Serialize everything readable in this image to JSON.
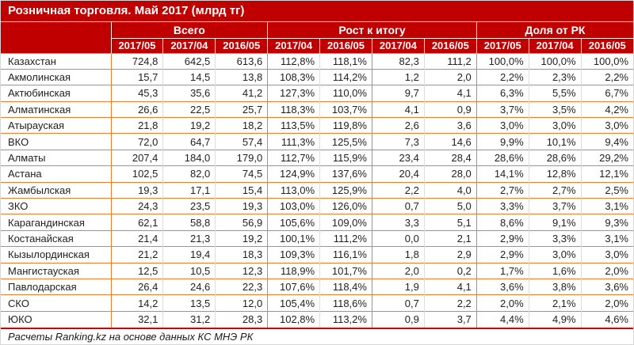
{
  "title": "Розничная торговля. Май 2017 (млрд тг)",
  "footer_note": "Расчеты Ranking.kz на основе данных КС МНЭ РК",
  "colors": {
    "header_bg": "#C00000",
    "row_border": "#ED7D31",
    "footer_border": "#CC0000",
    "column_divider": "#DDDDDD",
    "header_divider": "#F7ECE1",
    "text": "#1F1F1F"
  },
  "chart_data": {
    "type": "table",
    "title": "Розничная торговля. Май 2017 (млрд тг)",
    "column_groups": [
      {
        "label": "Всего",
        "span": 3
      },
      {
        "label": "Рост к итогу",
        "span": 4
      },
      {
        "label": "Доля от РК",
        "span": 3
      }
    ],
    "columns": [
      "2017/05",
      "2017/04",
      "2016/05",
      "2017/04",
      "2016/05",
      "2017/04",
      "2016/05",
      "2017/05",
      "2017/04",
      "2016/05"
    ],
    "rows": [
      {
        "name": "Казахстан",
        "values": [
          "724,8",
          "642,5",
          "613,6",
          "112,8%",
          "118,1%",
          "82,3",
          "111,2",
          "100,0%",
          "100,0%",
          "100,0%"
        ]
      },
      {
        "name": "Акмолинская",
        "values": [
          "15,7",
          "14,5",
          "13,8",
          "108,3%",
          "114,2%",
          "1,2",
          "2,0",
          "2,2%",
          "2,3%",
          "2,2%"
        ]
      },
      {
        "name": "Актюбинская",
        "values": [
          "45,3",
          "35,6",
          "41,2",
          "127,3%",
          "110,0%",
          "9,7",
          "4,1",
          "6,3%",
          "5,5%",
          "6,7%"
        ]
      },
      {
        "name": "Алматинская",
        "values": [
          "26,6",
          "22,5",
          "25,7",
          "118,3%",
          "103,7%",
          "4,1",
          "0,9",
          "3,7%",
          "3,5%",
          "4,2%"
        ]
      },
      {
        "name": "Атырауская",
        "values": [
          "21,8",
          "19,2",
          "18,2",
          "113,5%",
          "119,8%",
          "2,6",
          "3,6",
          "3,0%",
          "3,0%",
          "3,0%"
        ]
      },
      {
        "name": "ВКО",
        "values": [
          "72,0",
          "64,7",
          "57,4",
          "111,3%",
          "125,5%",
          "7,3",
          "14,6",
          "9,9%",
          "10,1%",
          "9,4%"
        ]
      },
      {
        "name": "Алматы",
        "values": [
          "207,4",
          "184,0",
          "179,0",
          "112,7%",
          "115,9%",
          "23,4",
          "28,4",
          "28,6%",
          "28,6%",
          "29,2%"
        ]
      },
      {
        "name": "Астана",
        "values": [
          "102,5",
          "82,0",
          "74,5",
          "124,9%",
          "137,6%",
          "20,4",
          "28,0",
          "14,1%",
          "12,8%",
          "12,1%"
        ]
      },
      {
        "name": "Жамбылская",
        "values": [
          "19,3",
          "17,1",
          "15,4",
          "113,0%",
          "125,9%",
          "2,2",
          "4,0",
          "2,7%",
          "2,7%",
          "2,5%"
        ]
      },
      {
        "name": "ЗКО",
        "values": [
          "24,3",
          "23,5",
          "19,3",
          "103,0%",
          "126,0%",
          "0,7",
          "5,0",
          "3,3%",
          "3,7%",
          "3,1%"
        ]
      },
      {
        "name": "Карагандинская",
        "values": [
          "62,1",
          "58,8",
          "56,9",
          "105,6%",
          "109,0%",
          "3,3",
          "5,1",
          "8,6%",
          "9,1%",
          "9,3%"
        ]
      },
      {
        "name": "Костанайская",
        "values": [
          "21,4",
          "21,3",
          "19,2",
          "100,1%",
          "111,2%",
          "0,0",
          "2,1",
          "2,9%",
          "3,3%",
          "3,1%"
        ]
      },
      {
        "name": "Кызылординская",
        "values": [
          "21,2",
          "19,4",
          "18,3",
          "109,3%",
          "116,1%",
          "1,8",
          "2,9",
          "2,9%",
          "3,0%",
          "3,0%"
        ]
      },
      {
        "name": "Мангистауская",
        "values": [
          "12,5",
          "10,5",
          "12,3",
          "118,9%",
          "101,7%",
          "2,0",
          "0,2",
          "1,7%",
          "1,6%",
          "2,0%"
        ]
      },
      {
        "name": "Павлодарская",
        "values": [
          "26,4",
          "24,6",
          "22,3",
          "107,6%",
          "118,4%",
          "1,9",
          "4,1",
          "3,6%",
          "3,8%",
          "3,6%"
        ]
      },
      {
        "name": "СКО",
        "values": [
          "14,2",
          "13,5",
          "12,0",
          "105,4%",
          "118,6%",
          "0,7",
          "2,2",
          "2,0%",
          "2,1%",
          "2,0%"
        ]
      },
      {
        "name": "ЮКО",
        "values": [
          "32,1",
          "31,2",
          "28,3",
          "102,8%",
          "113,2%",
          "0,9",
          "3,7",
          "4,4%",
          "4,9%",
          "4,6%"
        ]
      }
    ],
    "footer": "Расчеты Ranking.kz на основе данных КС МНЭ РК"
  }
}
